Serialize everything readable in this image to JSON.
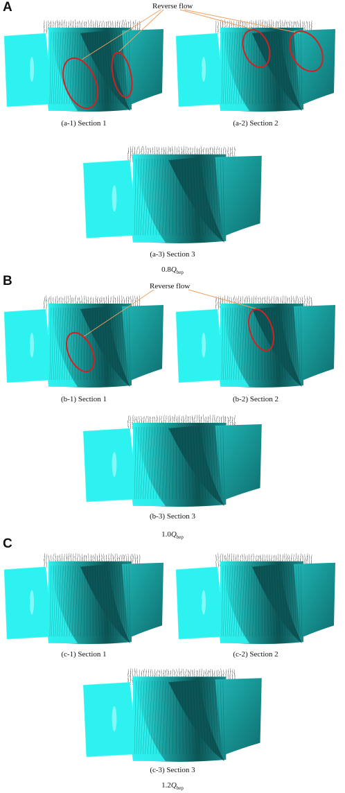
{
  "panels": [
    {
      "letter": "A",
      "annotation": "Reverse flow",
      "captions": [
        "(a-1) Section 1",
        "(a-2) Section 2",
        "(a-3) Section 3"
      ],
      "condition": {
        "coef": "0.8",
        "symbol": "Q",
        "sub": "bep"
      }
    },
    {
      "letter": "B",
      "annotation": "Reverse flow",
      "captions": [
        "(b-1) Section 1",
        "(b-2) Section 2",
        "(b-3) Section 3"
      ],
      "condition": {
        "coef": "1.0",
        "symbol": "Q",
        "sub": "bep"
      }
    },
    {
      "letter": "C",
      "captions": [
        "(c-1) Section 1",
        "(c-2) Section 2",
        "(c-3) Section 3"
      ],
      "condition": {
        "coef": "1.2",
        "symbol": "Q",
        "sub": "bep"
      }
    }
  ],
  "colors": {
    "blade_light": "#2ef2f0",
    "blade_dark": "#0c5556",
    "vectors": "#333333",
    "reverse_flow_ellipse": "#d42020",
    "leader_line": "#f0a060"
  }
}
